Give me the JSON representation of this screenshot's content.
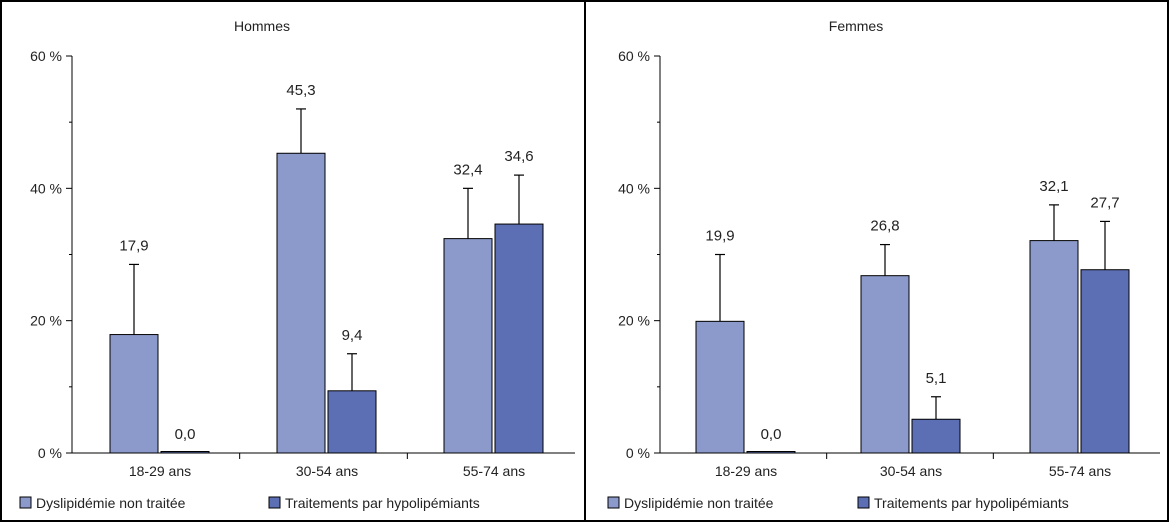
{
  "chart_data": [
    {
      "type": "bar",
      "title": "Hommes",
      "categories": [
        "18-29 ans",
        "30-54 ans",
        "55-74 ans"
      ],
      "ylim": [
        0,
        60
      ],
      "yticks": [
        0,
        20,
        40,
        60
      ],
      "ytick_labels": [
        "0 %",
        "20 %",
        "40 %",
        "60 %"
      ],
      "grid": false,
      "legend": "bottom",
      "series": [
        {
          "name": "Dyslipidémie non traitée",
          "color": "#8c9acb",
          "values": [
            17.9,
            45.3,
            32.4
          ],
          "labels": [
            "17,9",
            "45,3",
            "32,4"
          ],
          "error_upper": [
            28.5,
            52.0,
            40.0
          ]
        },
        {
          "name": "Traitements par hypolipémiants",
          "color": "#5d6fb4",
          "values": [
            0.0,
            9.4,
            34.6
          ],
          "labels": [
            "0,0",
            "9,4",
            "34,6"
          ],
          "error_upper": [
            0.0,
            15.0,
            42.0
          ]
        }
      ]
    },
    {
      "type": "bar",
      "title": "Femmes",
      "categories": [
        "18-29 ans",
        "30-54 ans",
        "55-74 ans"
      ],
      "ylim": [
        0,
        60
      ],
      "yticks": [
        0,
        20,
        40,
        60
      ],
      "ytick_labels": [
        "0 %",
        "20 %",
        "40 %",
        "60 %"
      ],
      "grid": false,
      "legend": "bottom",
      "series": [
        {
          "name": "Dyslipidémie non traitée",
          "color": "#8c9acb",
          "values": [
            19.9,
            26.8,
            32.1
          ],
          "labels": [
            "19,9",
            "26,8",
            "32,1"
          ],
          "error_upper": [
            30.0,
            31.5,
            37.5
          ]
        },
        {
          "name": "Traitements par hypolipémiants",
          "color": "#5d6fb4",
          "values": [
            0.0,
            5.1,
            27.7
          ],
          "labels": [
            "0,0",
            "5,1",
            "27,7"
          ],
          "error_upper": [
            0.0,
            8.5,
            35.0
          ]
        }
      ]
    }
  ]
}
